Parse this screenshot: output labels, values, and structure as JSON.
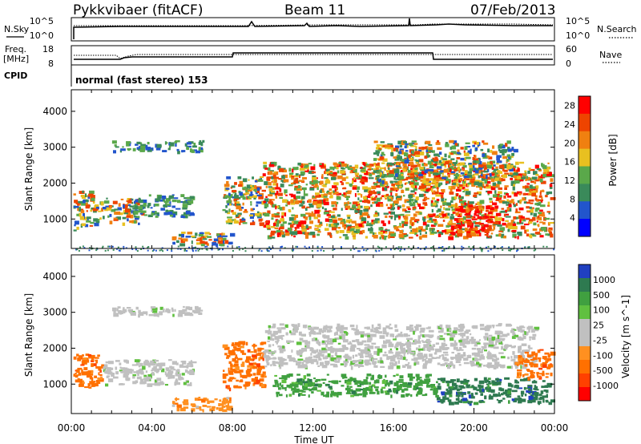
{
  "header": {
    "station": "Pykkvibaer (fitACF)",
    "beam": "Beam 11",
    "date": "07/Feb/2013"
  },
  "strip_labels": {
    "nsky": "N.Sky",
    "nsearch": "N.Search",
    "freq_line1": "Freq.",
    "freq_line2": "[MHz]",
    "nave": "Nave",
    "cpid": "CPID",
    "cpid_value": "normal (fast stereo) 153"
  },
  "strip_ticks": {
    "noise_top": "10^5",
    "noise_bottom": "10^0",
    "freq": [
      "18",
      "8"
    ],
    "nave": [
      "60",
      "0"
    ]
  },
  "colors": {
    "power_scale": [
      "#0000ff",
      "#2255cc",
      "#3a8a5a",
      "#5aa84a",
      "#e8c020",
      "#f08010",
      "#ee4400",
      "#ff0000"
    ],
    "velocity_scale": [
      "#2040c0",
      "#2e7a50",
      "#40a040",
      "#60c040",
      "#c0c0c0",
      "#c0c0c0",
      "#ff9020",
      "#ff7000",
      "#ff4000",
      "#ff0000"
    ]
  },
  "chart_data": [
    {
      "type": "heatmap",
      "name": "power",
      "ylabel": "Slant Range [km]",
      "yticks": [
        "1000",
        "2000",
        "3000",
        "4000"
      ],
      "ylim": [
        180,
        4600
      ],
      "xlabel": "",
      "colorbar": {
        "label": "Power [dB]",
        "ticks": [
          "4",
          "8",
          "12",
          "16",
          "20",
          "24",
          "28"
        ],
        "range": [
          0,
          30
        ]
      },
      "echo_regions": [
        {
          "t0": 0.1,
          "t1": 1.0,
          "r0": 700,
          "r1": 1800,
          "level": "medium"
        },
        {
          "t0": 1.0,
          "t1": 3.5,
          "r0": 900,
          "r1": 1600,
          "level": "medium"
        },
        {
          "t0": 3.0,
          "t1": 6.0,
          "r0": 1100,
          "r1": 1700,
          "level": "low"
        },
        {
          "t0": 2.0,
          "t1": 6.5,
          "r0": 2900,
          "r1": 3200,
          "level": "low"
        },
        {
          "t0": 5.0,
          "t1": 8.0,
          "r0": 300,
          "r1": 650,
          "level": "medium"
        },
        {
          "t0": 7.5,
          "t1": 9.5,
          "r0": 900,
          "r1": 2200,
          "level": "medium"
        },
        {
          "t0": 9.5,
          "t1": 23.8,
          "r0": 500,
          "r1": 2600,
          "level": "high"
        },
        {
          "t0": 15.0,
          "t1": 22.0,
          "r0": 2000,
          "r1": 3200,
          "level": "medium"
        },
        {
          "t0": 19.0,
          "t1": 21.0,
          "r0": 600,
          "r1": 1400,
          "level": "very-high"
        }
      ]
    },
    {
      "type": "heatmap",
      "name": "velocity",
      "ylabel": "Slant Range [km]",
      "yticks": [
        "1000",
        "2000",
        "3000",
        "4000"
      ],
      "ylim": [
        180,
        4600
      ],
      "xlabel": "Time UT",
      "xticks": [
        "00:00",
        "04:00",
        "08:00",
        "12:00",
        "16:00",
        "20:00",
        "00:00"
      ],
      "xlim": [
        0,
        24
      ],
      "colorbar": {
        "label": "Velocity [m s^-1]",
        "ticks": [
          "1000",
          "500",
          "100",
          "25",
          "-25",
          "-100",
          "-500",
          "-1000"
        ]
      },
      "echo_regions": [
        {
          "t0": 0.1,
          "t1": 1.5,
          "r0": 900,
          "r1": 1900,
          "class": "-500"
        },
        {
          "t0": 1.5,
          "t1": 6.0,
          "r0": 1000,
          "r1": 1700,
          "class": "25"
        },
        {
          "t0": 2.0,
          "t1": 6.5,
          "r0": 2950,
          "r1": 3200,
          "class": "25"
        },
        {
          "t0": 5.0,
          "t1": 8.0,
          "r0": 300,
          "r1": 650,
          "class": "-100"
        },
        {
          "t0": 7.5,
          "t1": 9.5,
          "r0": 900,
          "r1": 2200,
          "class": "-500"
        },
        {
          "t0": 9.5,
          "t1": 23.0,
          "r0": 1500,
          "r1": 2700,
          "class": "25"
        },
        {
          "t0": 10.0,
          "t1": 18.0,
          "r0": 700,
          "r1": 1300,
          "class": "100"
        },
        {
          "t0": 18.0,
          "t1": 23.8,
          "r0": 500,
          "r1": 1200,
          "class": "500"
        },
        {
          "t0": 22.0,
          "t1": 23.8,
          "r0": 1200,
          "r1": 2000,
          "class": "-500"
        }
      ]
    }
  ]
}
